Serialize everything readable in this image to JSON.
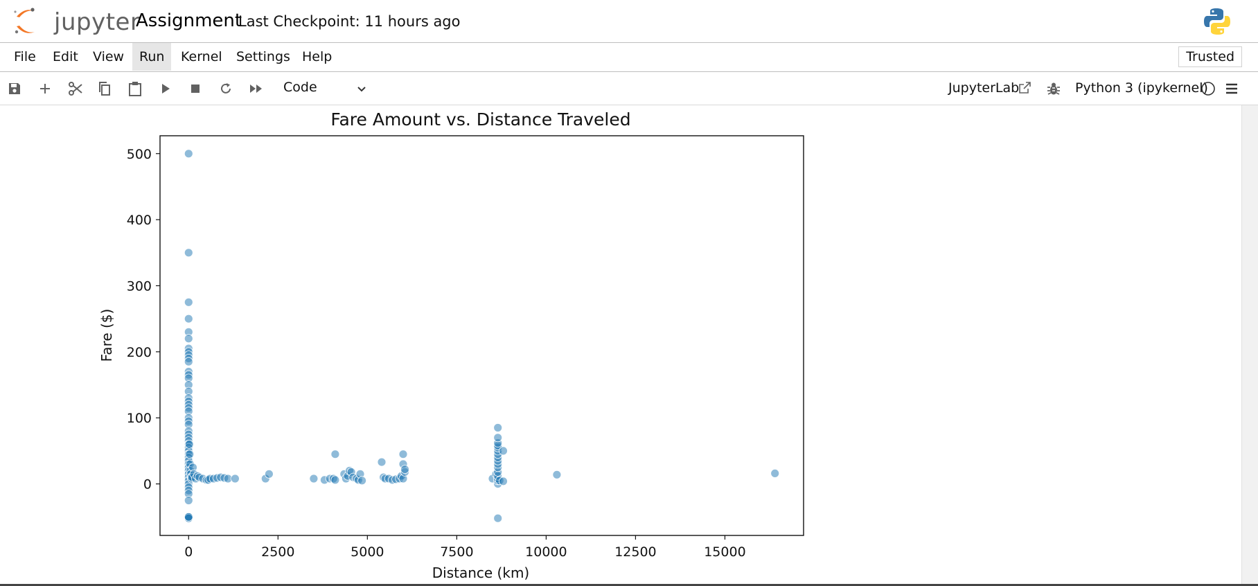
{
  "header": {
    "logo_text": "jupyter",
    "notebook_title": "Assignment",
    "checkpoint": "Last Checkpoint: 11 hours ago"
  },
  "menubar": {
    "items": [
      {
        "label": "File"
      },
      {
        "label": "Edit"
      },
      {
        "label": "View"
      },
      {
        "label": "Run",
        "active": true
      },
      {
        "label": "Kernel"
      },
      {
        "label": "Settings"
      },
      {
        "label": "Help"
      }
    ],
    "trusted": "Trusted"
  },
  "toolbar": {
    "buttons": [
      "save-icon",
      "plus-icon",
      "scissors-icon",
      "copy-icon",
      "paste-icon",
      "run-icon",
      "stop-icon",
      "restart-icon",
      "fast-forward-icon"
    ],
    "cell_type": "Code",
    "jupyterlab_link": "JupyterLab",
    "kernel_name": "Python 3 (ipykernel)"
  },
  "colors": {
    "marker": "#1f77b4",
    "jupyter_orange": "#f37726"
  },
  "chart_data": {
    "type": "scatter",
    "title": "Fare Amount vs. Distance Traveled",
    "xlabel": "Distance (km)",
    "ylabel": "Fare ($)",
    "xlim": [
      -800,
      17200
    ],
    "ylim": [
      -78,
      527
    ],
    "xticks": [
      0,
      2500,
      5000,
      7500,
      10000,
      12500,
      15000
    ],
    "xtick_labels": [
      "0",
      "2500",
      "5000",
      "7500",
      "10000",
      "12500",
      "15000"
    ],
    "yticks": [
      0,
      100,
      200,
      300,
      400,
      500
    ],
    "ytick_labels": [
      "0",
      "100",
      "200",
      "300",
      "400",
      "500"
    ],
    "grid": false,
    "series": [
      {
        "x": [
          0,
          0,
          0,
          0,
          0,
          0,
          0,
          0,
          0,
          0,
          0,
          0,
          0,
          0,
          0,
          0,
          0,
          0,
          0,
          0,
          0,
          0,
          0,
          0,
          0,
          0,
          0,
          0,
          0,
          0,
          0,
          0,
          0,
          0,
          0,
          0,
          0,
          0,
          0,
          0,
          0,
          0,
          0,
          0,
          0,
          0,
          0,
          0,
          0,
          0,
          20,
          30,
          40,
          50,
          60,
          70,
          80,
          100,
          120,
          150,
          200,
          250,
          300,
          400,
          500,
          550,
          600,
          700,
          800,
          900,
          1000,
          1100,
          1300,
          2150,
          2250,
          3500,
          3800,
          3950,
          4050,
          4100,
          4100,
          4350,
          4400,
          4450,
          4500,
          4550,
          4600,
          4700,
          4750,
          4800,
          4850,
          5400,
          5450,
          5500,
          5600,
          5700,
          5800,
          5900,
          5950,
          6000,
          6000,
          6000,
          6050,
          6050,
          8500,
          8600,
          8650,
          8650,
          8650,
          8650,
          8650,
          8650,
          8650,
          8650,
          8650,
          8650,
          8650,
          8650,
          8650,
          8650,
          8650,
          8650,
          8650,
          8700,
          8800,
          8800,
          10300,
          16400
        ],
        "y": [
          500,
          350,
          275,
          250,
          230,
          220,
          205,
          200,
          195,
          190,
          185,
          170,
          165,
          160,
          150,
          140,
          130,
          125,
          120,
          115,
          110,
          100,
          95,
          90,
          80,
          75,
          70,
          65,
          60,
          55,
          50,
          45,
          40,
          35,
          30,
          25,
          20,
          15,
          10,
          5,
          0,
          -5,
          -10,
          -15,
          -25,
          -50,
          -52,
          -50,
          -52,
          -50,
          60,
          45,
          30,
          20,
          15,
          10,
          8,
          10,
          25,
          15,
          8,
          12,
          10,
          8,
          6,
          6,
          8,
          8,
          9,
          10,
          9,
          8,
          8,
          8,
          15,
          8,
          6,
          8,
          8,
          6,
          45,
          15,
          8,
          12,
          20,
          18,
          10,
          8,
          6,
          15,
          5,
          33,
          10,
          8,
          8,
          6,
          7,
          8,
          12,
          30,
          45,
          8,
          18,
          22,
          8,
          15,
          0,
          5,
          8,
          12,
          18,
          25,
          30,
          35,
          40,
          45,
          50,
          55,
          58,
          62,
          70,
          85,
          -52,
          5,
          50,
          4,
          14,
          16
        ]
      }
    ]
  }
}
